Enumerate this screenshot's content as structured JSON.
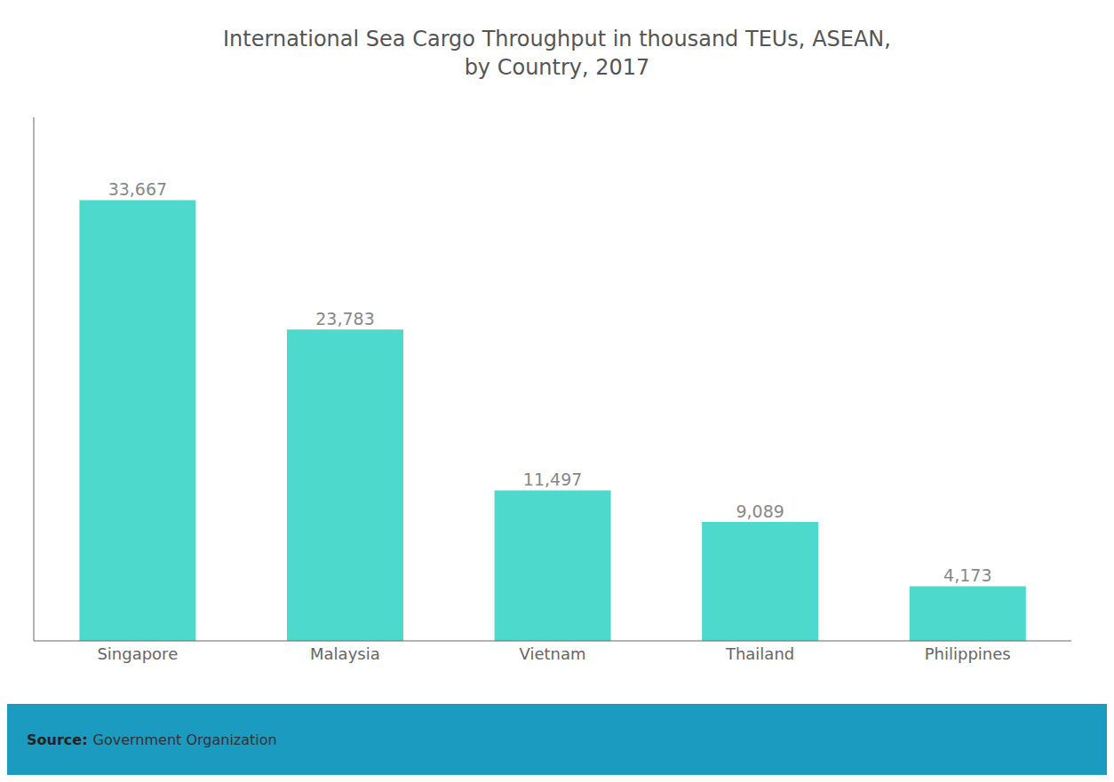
{
  "chart_data": {
    "type": "bar",
    "title": "International Sea Cargo Throughput in thousand TEUs, ASEAN,\nby Country, 2017",
    "categories": [
      "Singapore",
      "Malaysia",
      "Vietnam",
      "Thailand",
      "Philippines"
    ],
    "values": [
      33667,
      23783,
      11497,
      9089,
      4173
    ],
    "value_labels": [
      "33,667",
      "23,783",
      "11,497",
      "9,089",
      "4,173"
    ],
    "data_labels": true,
    "color": "#4DD9CB",
    "ylim": [
      0,
      40000
    ],
    "grid": false,
    "tick_labels": "x",
    "annotations": [
      "Source:",
      "Government Organization"
    ]
  }
}
